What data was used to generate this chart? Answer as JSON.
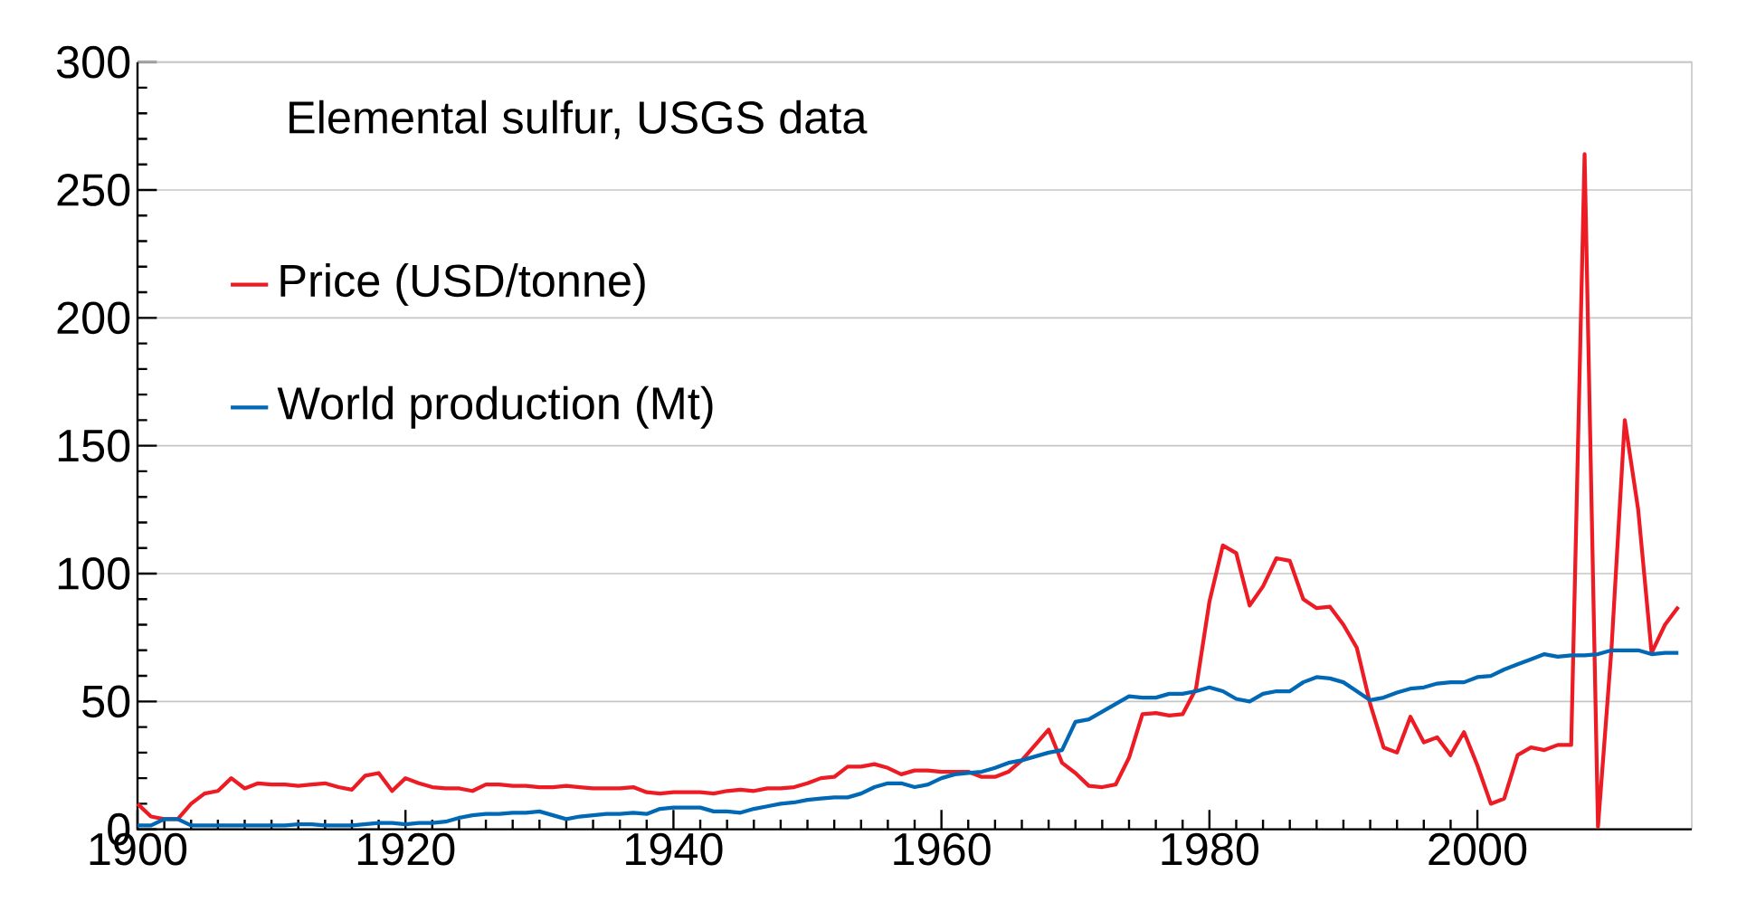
{
  "chart_data": {
    "type": "line",
    "title": "Elemental sulfur, USGS data",
    "x": [
      1900,
      1901,
      1902,
      1903,
      1904,
      1905,
      1906,
      1907,
      1908,
      1909,
      1910,
      1911,
      1912,
      1913,
      1914,
      1915,
      1916,
      1917,
      1918,
      1919,
      1920,
      1921,
      1922,
      1923,
      1924,
      1925,
      1926,
      1927,
      1928,
      1929,
      1930,
      1931,
      1932,
      1933,
      1934,
      1935,
      1936,
      1937,
      1938,
      1939,
      1940,
      1941,
      1942,
      1943,
      1944,
      1945,
      1946,
      1947,
      1948,
      1949,
      1950,
      1951,
      1952,
      1953,
      1954,
      1955,
      1956,
      1957,
      1958,
      1959,
      1960,
      1961,
      1962,
      1963,
      1964,
      1965,
      1966,
      1967,
      1968,
      1969,
      1970,
      1971,
      1972,
      1973,
      1974,
      1975,
      1976,
      1977,
      1978,
      1979,
      1980,
      1981,
      1982,
      1983,
      1984,
      1985,
      1986,
      1987,
      1988,
      1989,
      1990,
      1991,
      1992,
      1993,
      1994,
      1995,
      1996,
      1997,
      1998,
      1999,
      2000,
      2001,
      2002,
      2003,
      2004,
      2005,
      2006,
      2007,
      2008,
      2009,
      2010,
      2011,
      2012,
      2013,
      2014,
      2015
    ],
    "series": [
      {
        "name": "Price (USD/tonne)",
        "color": "#ed1c24",
        "values": [
          10,
          5,
          4,
          4,
          10,
          14,
          15,
          20,
          16,
          18,
          17.5,
          17.5,
          17,
          17.5,
          18,
          16.5,
          15.5,
          21,
          22,
          15,
          20,
          18,
          16.5,
          16,
          16,
          15,
          17.5,
          17.5,
          17,
          17,
          16.5,
          16.5,
          17,
          16.5,
          16,
          16,
          16,
          16.5,
          14.5,
          14,
          14.5,
          14.5,
          14.5,
          14,
          15,
          15.5,
          15,
          16,
          16,
          16.5,
          18,
          20,
          20.5,
          24.5,
          24.5,
          25.5,
          24,
          21.5,
          23,
          23,
          22.5,
          22.5,
          22.5,
          20.5,
          20.5,
          22.5,
          27,
          33,
          39,
          26,
          22,
          17,
          16.5,
          17.5,
          28,
          45,
          45.5,
          44.5,
          45,
          55,
          89,
          111,
          108,
          87.5,
          95,
          106,
          105,
          90,
          86.5,
          87,
          80,
          71,
          49,
          32,
          30,
          44,
          34,
          36,
          29,
          38,
          25,
          10,
          12,
          29,
          32,
          31,
          33,
          33,
          264,
          1,
          70,
          160,
          125,
          69,
          80,
          87
        ]
      },
      {
        "name": "World production (Mt)",
        "color": "#0068b5",
        "values": [
          1.5,
          1.5,
          4,
          4,
          1.5,
          1.5,
          1.5,
          1.5,
          1.5,
          1.5,
          1.5,
          1.5,
          2,
          2,
          1.5,
          1.5,
          1.5,
          2,
          2.5,
          2.5,
          2,
          2.5,
          2.5,
          3,
          4.5,
          5.5,
          6,
          6,
          6.5,
          6.5,
          7,
          5.5,
          4,
          5,
          5.5,
          6,
          6,
          6.5,
          6,
          8,
          8.5,
          8.5,
          8.5,
          7,
          7,
          6.5,
          8,
          9,
          10,
          10.5,
          11.5,
          12,
          12.5,
          12.5,
          14,
          16.5,
          18,
          18,
          16.5,
          17.5,
          20,
          21.5,
          22,
          22.5,
          24,
          26,
          27,
          28.5,
          30,
          31,
          42,
          43,
          46,
          49,
          52,
          51.5,
          51.5,
          53,
          53,
          54,
          55.5,
          54,
          51,
          50,
          53,
          54,
          54,
          57.5,
          59.5,
          59,
          57.5,
          54,
          50.5,
          51.5,
          53.5,
          55,
          55.5,
          57,
          57.5,
          57.5,
          59.5,
          60,
          62.5,
          64.5,
          66.5,
          68.5,
          67.5,
          68,
          68,
          68.5,
          70,
          70,
          70,
          68.5,
          69,
          69
        ]
      }
    ],
    "xlim": [
      1900,
      2016
    ],
    "ylim": [
      0,
      300
    ],
    "xticks": [
      1900,
      1920,
      1940,
      1960,
      1980,
      2000
    ],
    "yticks": [
      0,
      50,
      100,
      150,
      200,
      250,
      300
    ],
    "grid": "y",
    "legend": "top left",
    "marker": "none",
    "line_style": "solid"
  }
}
